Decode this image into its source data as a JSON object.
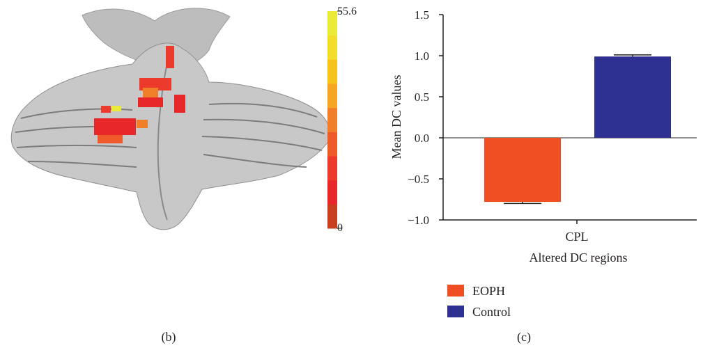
{
  "panel_b": {
    "label": "(b)",
    "colorbar": {
      "max_label": "55.6",
      "min_label": "0",
      "colors": [
        "#c8401f",
        "#e8272b",
        "#ec3a2c",
        "#ef5a2a",
        "#f17f2a",
        "#f5a623",
        "#f7c21b",
        "#f1dd2a",
        "#eaea3a"
      ]
    }
  },
  "panel_c": {
    "label": "(c)"
  },
  "chart_data": {
    "type": "bar",
    "categories": [
      "CPL"
    ],
    "xlabel": "Altered DC regions",
    "ylabel": "Mean DC values",
    "ylim": [
      -1.0,
      1.5
    ],
    "yticks": [
      -1.0,
      -0.5,
      0.0,
      0.5,
      1.0,
      1.5
    ],
    "ytick_labels": [
      "−1.0",
      "−0.5",
      "0.0",
      "0.5",
      "1.0",
      "1.5"
    ],
    "grid": false,
    "legend_placement": "bottom-left",
    "series": [
      {
        "name": "EOPH",
        "values": [
          -0.78
        ],
        "error": [
          0.02
        ],
        "color": "#f04e23"
      },
      {
        "name": "Control",
        "values": [
          0.99
        ],
        "error": [
          0.02
        ],
        "color": "#2e3192"
      }
    ]
  }
}
